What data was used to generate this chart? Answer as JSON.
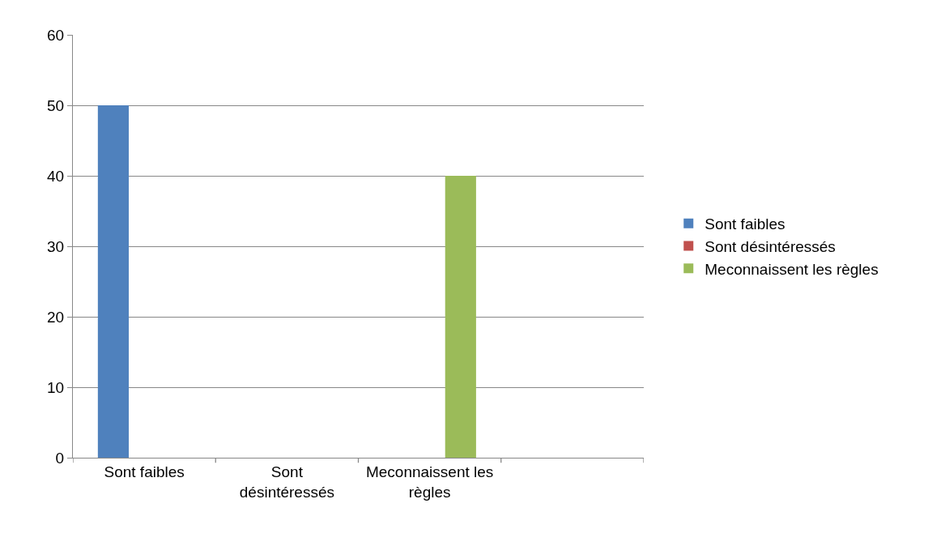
{
  "chart_data": {
    "type": "bar",
    "categories": [
      "Sont faibles",
      "Sont désintéressés",
      "Meconnaissent les règles",
      null
    ],
    "series": [
      {
        "name": "Sont faibles",
        "color": "#4f81bd",
        "values": [
          50,
          0,
          0,
          0
        ]
      },
      {
        "name": "Sont désintéressés",
        "color": "#c0504d",
        "values": [
          0,
          0,
          0,
          0
        ]
      },
      {
        "name": "Meconnaissent les règles",
        "color": "#9bbb59",
        "values": [
          0,
          0,
          40,
          0
        ]
      }
    ],
    "ylim": [
      0,
      60
    ],
    "yticks": [
      0,
      10,
      20,
      30,
      40,
      50,
      60
    ],
    "grid": "y",
    "legend": "right"
  }
}
